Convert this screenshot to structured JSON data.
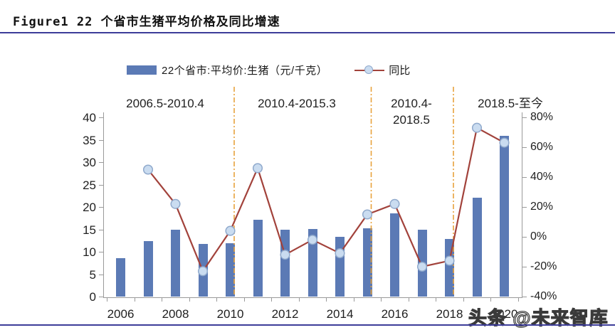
{
  "title": "Figure1 22 个省市生猪平均价格及同比增速",
  "legend": {
    "bar_label": "22个省市:平均价:生猪（元/千克）",
    "line_label": "同比"
  },
  "watermark": "头条 @未来智库",
  "colors": {
    "bar": "#5b7ab5",
    "line": "#a2423b",
    "marker_fill": "#cadcf0",
    "marker_border": "#8fa9cc",
    "separator": "#e8a23c",
    "rule": "#3d3d99",
    "axis": "#9a9a9a"
  },
  "chart_data": {
    "type": "bar",
    "title": "Figure1 22 个省市生猪平均价格及同比增速",
    "categories": [
      "2006",
      "2007",
      "2008",
      "2009",
      "2010",
      "2011",
      "2012",
      "2013",
      "2014",
      "2015",
      "2016",
      "2017",
      "2018",
      "2019",
      "2020"
    ],
    "series": [
      {
        "name": "22个省市:平均价:生猪（元/千克）",
        "type": "bar",
        "axis": "left",
        "values": [
          8.5,
          12.4,
          15.0,
          11.7,
          11.9,
          17.2,
          14.9,
          15.1,
          13.4,
          15.2,
          18.6,
          15.0,
          12.8,
          22.0,
          35.8
        ]
      },
      {
        "name": "同比",
        "type": "line",
        "axis": "right",
        "unit": "%",
        "values": [
          null,
          45,
          22,
          -23,
          4,
          46,
          -12,
          -2,
          -11,
          15,
          22,
          -20,
          -16,
          73,
          63
        ]
      }
    ],
    "left_axis": {
      "min": 0,
      "max": 40,
      "tick_labels": [
        "0",
        "5",
        "10",
        "15",
        "20",
        "25",
        "30",
        "35",
        "40"
      ]
    },
    "right_axis": {
      "min": -40,
      "max": 80,
      "unit": "%",
      "tick_labels": [
        "-40%",
        "-20%",
        "0%",
        "20%",
        "40%",
        "60%",
        "80%"
      ]
    },
    "x_tick_labels": [
      "2006",
      "2008",
      "2010",
      "2012",
      "2014",
      "2016",
      "2018",
      "2020"
    ],
    "period_annotations": [
      {
        "lines": [
          "2006.5-2010.4"
        ]
      },
      {
        "lines": [
          "2010.4-2015.3"
        ]
      },
      {
        "lines": [
          "2010.4-",
          "2018.5"
        ]
      },
      {
        "lines": [
          "2018.5-至今"
        ]
      }
    ],
    "separators_after_years": [
      "2010",
      "2015",
      "2018"
    ],
    "grid": false,
    "legend_position": "top"
  }
}
